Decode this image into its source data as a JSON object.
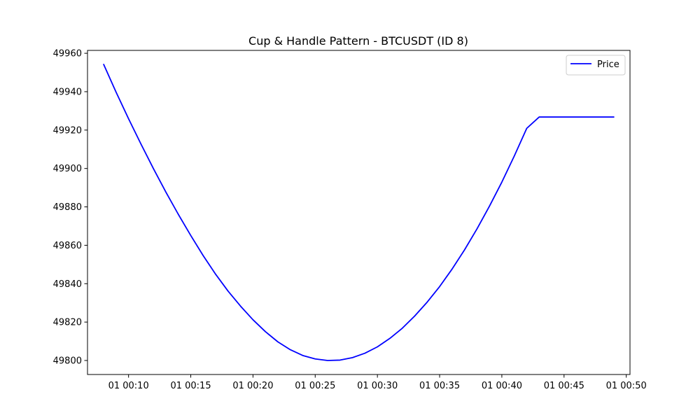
{
  "chart_data": {
    "type": "line",
    "title": "Cup & Handle Pattern - BTCUSDT (ID 8)",
    "xlabel": "",
    "ylabel": "",
    "x_unit": "minutes past 00:00",
    "x": [
      8,
      9,
      10,
      11,
      12,
      13,
      14,
      15,
      16,
      17,
      18,
      19,
      20,
      21,
      22,
      23,
      24,
      25,
      26,
      27,
      28,
      29,
      30,
      31,
      32,
      33,
      34,
      35,
      36,
      37,
      38,
      39,
      40,
      41,
      42,
      43,
      44,
      45,
      46,
      47,
      48,
      49
    ],
    "series": [
      {
        "name": "Price",
        "color": "#0000ff",
        "values": [
          49954.2,
          49939.7,
          49925.9,
          49912.7,
          49899.9,
          49887.7,
          49876.1,
          49865.1,
          49854.6,
          49844.9,
          49836.1,
          49828.3,
          49821.2,
          49815.0,
          49809.7,
          49805.6,
          49802.6,
          49800.8,
          49800.0,
          49800.2,
          49801.5,
          49803.8,
          49807.1,
          49811.5,
          49816.8,
          49823.2,
          49830.4,
          49838.5,
          49847.6,
          49857.6,
          49868.5,
          49880.3,
          49892.9,
          49906.5,
          49920.9,
          49926.8,
          49926.8,
          49926.8,
          49926.8,
          49926.8,
          49926.8,
          49926.8
        ]
      }
    ],
    "xlim": [
      6.7,
      50.3
    ],
    "ylim": [
      49792.7,
      49961.5
    ],
    "x_ticks": [
      10,
      15,
      20,
      25,
      30,
      35,
      40,
      45,
      50
    ],
    "x_tick_labels": [
      "01 00:10",
      "01 00:15",
      "01 00:20",
      "01 00:25",
      "01 00:30",
      "01 00:35",
      "01 00:40",
      "01 00:45",
      "01 00:50"
    ],
    "y_ticks": [
      49800,
      49820,
      49840,
      49860,
      49880,
      49900,
      49920,
      49940,
      49960
    ],
    "y_tick_labels": [
      "49800",
      "49820",
      "49840",
      "49860",
      "49880",
      "49900",
      "49920",
      "49940",
      "49960"
    ],
    "grid": false,
    "legend": {
      "position": "top-right",
      "entries": [
        "Price"
      ]
    }
  }
}
